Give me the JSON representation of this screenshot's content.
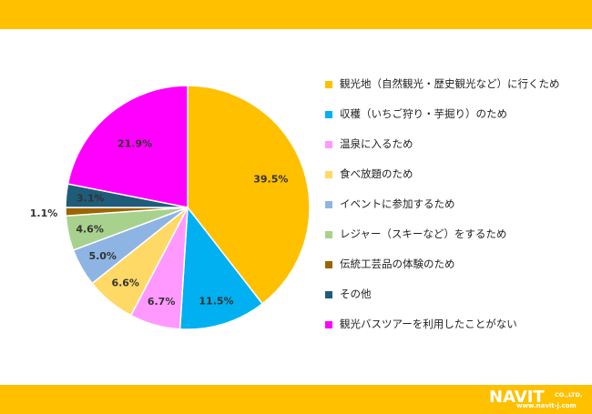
{
  "chart_data": {
    "type": "pie",
    "start_angle_deg": 0,
    "direction": "clockwise",
    "legend_position": "right",
    "slices": [
      {
        "label": "観光地（自然観光・歴史観光など）に行くため",
        "value": 39.5,
        "display": "39.5%",
        "color": "#FFC000"
      },
      {
        "label": "収穫（いちご狩り・芋掘り）のため",
        "value": 11.5,
        "display": "11.5%",
        "color": "#00B0F0"
      },
      {
        "label": "温泉に入るため",
        "value": 6.7,
        "display": "6.7%",
        "color": "#FF99FF"
      },
      {
        "label": "食べ放題のため",
        "value": 6.6,
        "display": "6.6%",
        "color": "#FFD966"
      },
      {
        "label": "イベントに参加するため",
        "value": 5.0,
        "display": "5.0%",
        "color": "#8EB4E3"
      },
      {
        "label": "レジャー（スキーなど）をするため",
        "value": 4.6,
        "display": "4.6%",
        "color": "#A9D18E"
      },
      {
        "label": "伝統工芸品の体験のため",
        "value": 1.1,
        "display": "1.1%",
        "color": "#9C6500"
      },
      {
        "label": "その他",
        "value": 3.1,
        "display": "3.1%",
        "color": "#1F5C7A"
      },
      {
        "label": "観光バスツアーを利用したことがない",
        "value": 21.9,
        "display": "21.9%",
        "color": "#FF00FF"
      }
    ]
  },
  "logo": {
    "main": "NAVIT",
    "company": "CO.,LTD.",
    "url": "www.navit-j.com"
  }
}
